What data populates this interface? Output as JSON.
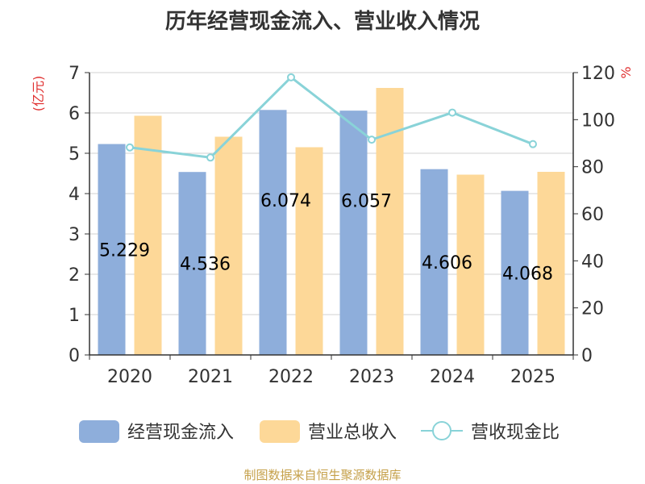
{
  "title": "历年经营现金流入、营业收入情况",
  "source_note": "制图数据来自恒生聚源数据库",
  "chart_data": {
    "type": "bar",
    "title": "历年经营现金流入、营业收入情况",
    "categories": [
      "2020",
      "2021",
      "2022",
      "2023",
      "2024",
      "2025"
    ],
    "y_left": {
      "unit": "(亿元)",
      "ylim": [
        0,
        7
      ],
      "ticks": [
        "0",
        "1",
        "2",
        "3",
        "4",
        "5",
        "6",
        "7"
      ]
    },
    "y_right": {
      "unit": "%",
      "ylim": [
        0,
        120
      ],
      "ticks": [
        "0",
        "20",
        "40",
        "60",
        "80",
        "100",
        "120"
      ]
    },
    "series": [
      {
        "name": "经营现金流入",
        "type": "bar",
        "axis": "left",
        "color": "#8eaedb",
        "values": [
          5.229,
          4.536,
          6.074,
          6.057,
          4.606,
          4.068
        ],
        "labels": [
          "5.229",
          "4.536",
          "6.074",
          "6.057",
          "4.606",
          "4.068"
        ]
      },
      {
        "name": "营业总收入",
        "type": "bar",
        "axis": "left",
        "color": "#fdd898",
        "values": [
          5.93,
          5.41,
          5.15,
          6.62,
          4.47,
          4.54
        ]
      },
      {
        "name": "营收现金比",
        "type": "line",
        "axis": "right",
        "color": "#89d3d8",
        "values": [
          88.2,
          83.9,
          118,
          91.5,
          103,
          89.6
        ]
      }
    ],
    "legend_position": "bottom",
    "grid": true
  }
}
